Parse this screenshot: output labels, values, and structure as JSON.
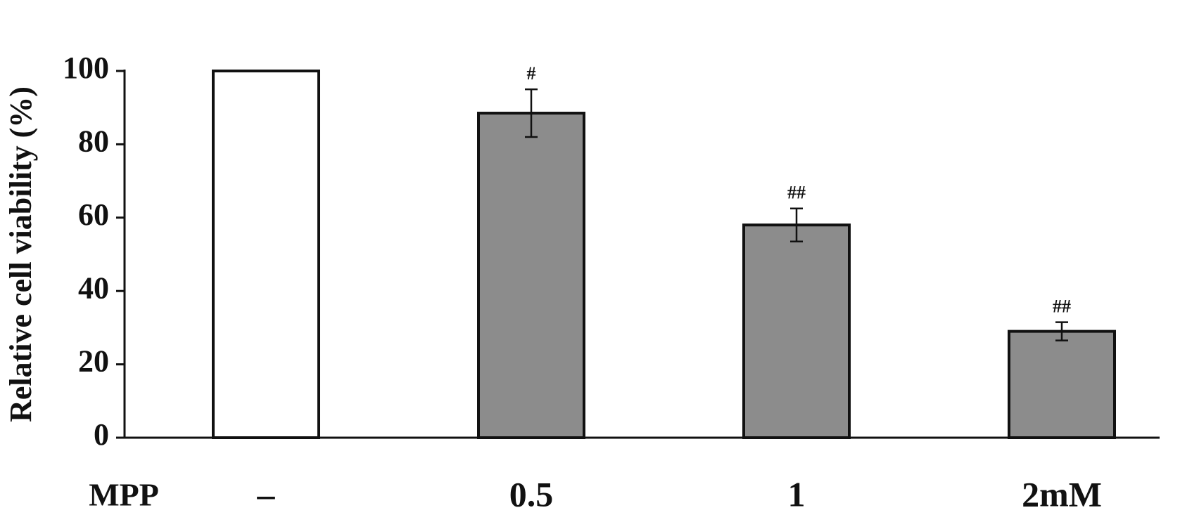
{
  "chart_data": {
    "type": "bar",
    "y_label": "Relative cell viability (%)",
    "x_row_label": "MPP",
    "categories": [
      "–",
      "0.5",
      "1",
      "2mM"
    ],
    "values": [
      100,
      88.5,
      58,
      29
    ],
    "errors": [
      null,
      6.5,
      4.5,
      2.5
    ],
    "annotations": [
      null,
      "#",
      "##",
      "##"
    ],
    "colors": [
      "#ffffff",
      "#8c8c8c",
      "#8c8c8c",
      "#8c8c8c"
    ],
    "ylim": [
      0,
      100
    ],
    "yticks": [
      0,
      20,
      40,
      60,
      80,
      100
    ],
    "grid": false
  }
}
